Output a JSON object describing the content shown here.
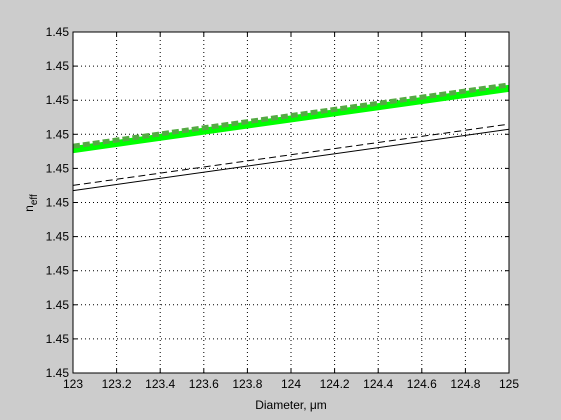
{
  "chart_data": {
    "type": "line",
    "title": "",
    "xlabel": "Diameter, μm",
    "ylabel_main": "n",
    "ylabel_sub": "eff",
    "xlim": [
      123,
      125
    ],
    "ylim": [
      0,
      10
    ],
    "grid": true,
    "x_ticks": [
      123,
      123.2,
      123.4,
      123.6,
      123.8,
      124,
      124.2,
      124.4,
      124.6,
      124.8,
      125
    ],
    "x_tick_labels": [
      "123",
      "123.2",
      "123.4",
      "123.6",
      "123.8",
      "124",
      "124.2",
      "124.4",
      "124.6",
      "124.8",
      "125"
    ],
    "y_ticks": [
      0,
      1,
      2,
      3,
      4,
      5,
      6,
      7,
      8,
      9,
      10
    ],
    "y_tick_labels": [
      "1.45",
      "1.45",
      "1.45",
      "1.45",
      "1.45",
      "1.45",
      "1.45",
      "1.45",
      "1.45",
      "1.45",
      "1.45"
    ],
    "series": [
      {
        "style": "green-thick",
        "color": "#00ff00",
        "x": [
          123,
          125
        ],
        "y": [
          6.55,
          8.35
        ]
      },
      {
        "style": "green-dashed-overlay",
        "color": "#55aa44",
        "x": [
          123,
          125
        ],
        "y": [
          6.65,
          8.45
        ]
      },
      {
        "style": "solid",
        "color": "#000000",
        "x": [
          123,
          125
        ],
        "y": [
          5.35,
          7.15
        ]
      },
      {
        "style": "dashed",
        "color": "#000000",
        "x": [
          123,
          125
        ],
        "y": [
          5.5,
          7.3
        ]
      }
    ]
  }
}
